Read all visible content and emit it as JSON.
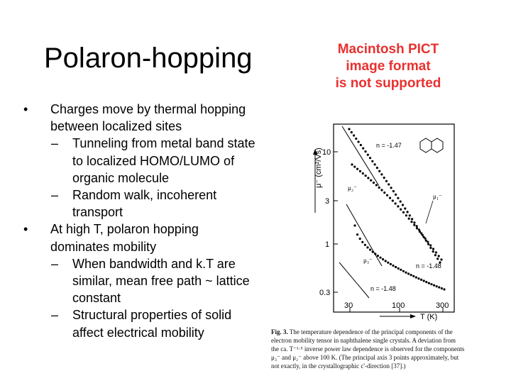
{
  "slide": {
    "title": "Polaron-hopping",
    "pict_message": [
      "Macintosh PICT",
      "image format",
      "is not supported"
    ],
    "bullets": [
      {
        "level": 1,
        "marker": "•",
        "lines": [
          "Charges move by thermal hopping",
          "between localized sites"
        ]
      },
      {
        "level": 2,
        "marker": "–",
        "lines": [
          "Tunneling from metal band state",
          "to localized HOMO/LUMO of",
          "organic molecule"
        ]
      },
      {
        "level": 2,
        "marker": "–",
        "lines": [
          "Random walk, incoherent",
          "transport"
        ]
      },
      {
        "level": 1,
        "marker": "•",
        "lines": [
          "At high T, polaron hopping",
          "dominates mobility"
        ]
      },
      {
        "level": 2,
        "marker": "–",
        "lines": [
          "When bandwidth and k.T are",
          "similar, mean free path ~ lattice",
          "constant"
        ]
      },
      {
        "level": 2,
        "marker": "–",
        "lines": [
          "Structural properties of solid",
          "affect electrical mobility"
        ]
      }
    ]
  },
  "figure": {
    "y_axis_label": "μ⁻ (cm²/Vs)",
    "x_axis_label": "T (K)",
    "y_ticks": [
      "10",
      "3",
      "1",
      "0.3"
    ],
    "x_ticks": [
      "30",
      "100",
      "300"
    ],
    "annotations": {
      "slope_top": "n = -1.47",
      "slope_middle": "n = -1.48",
      "slope_bottom": "n = -1.48",
      "mu1": "μ₁⁻",
      "mu2": "μ₂⁻",
      "mu3": "μ₃⁻"
    },
    "caption": {
      "label": "Fig. 3.",
      "lines": [
        "The temperature dependence of the principal components of the",
        "electron mobility tensor in naphthalene single crystals. A deviation from",
        "the ca. T⁻¹·⁵ inverse power law dependence is observed for the components",
        "μ₃⁻ and μ₂⁻ above 100 K. (The principal axis 3 points approximately, but",
        "not exactly, in the crystallographic c'-direction [37].)"
      ]
    }
  }
}
